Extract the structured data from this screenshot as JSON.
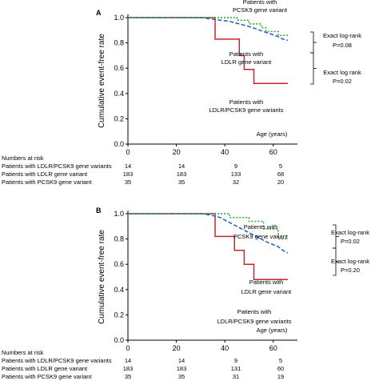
{
  "chart_data": [
    {
      "type": "line",
      "panel": "A",
      "ylabel": "Cumulative event-free rate",
      "xlabel": "Age (years)",
      "xlim": [
        0,
        70
      ],
      "ylim": [
        0.0,
        1.0
      ],
      "xticks": [
        0,
        20,
        40,
        60
      ],
      "yticks": [
        "0.0",
        "0.2",
        "0.4",
        "0.6",
        "0.8",
        "1.0"
      ],
      "series": [
        {
          "name": "Patients with LDLR/PCSK9 gene variants",
          "color": "#d0202a",
          "dash": "solid",
          "points": [
            [
              0,
              1.0
            ],
            [
              36,
              1.0
            ],
            [
              36,
              0.83
            ],
            [
              46,
              0.83
            ],
            [
              46,
              0.7
            ],
            [
              48,
              0.7
            ],
            [
              48,
              0.59
            ],
            [
              52,
              0.59
            ],
            [
              52,
              0.48
            ],
            [
              66,
              0.48
            ]
          ]
        },
        {
          "name": "Patients with LDLR gene variant",
          "color": "#1f5fc4",
          "dash": "dash",
          "points": [
            [
              0,
              1.0
            ],
            [
              30,
              1.0
            ],
            [
              34,
              0.99
            ],
            [
              38,
              0.98
            ],
            [
              42,
              0.97
            ],
            [
              46,
              0.95
            ],
            [
              50,
              0.93
            ],
            [
              53,
              0.91
            ],
            [
              56,
              0.89
            ],
            [
              59,
              0.87
            ],
            [
              62,
              0.85
            ],
            [
              64,
              0.83
            ],
            [
              66,
              0.82
            ]
          ]
        },
        {
          "name": "Patients with PCSK9 gene variant",
          "color": "#2aa42a",
          "dash": "dot",
          "points": [
            [
              0,
              1.0
            ],
            [
              45,
              1.0
            ],
            [
              45,
              0.98
            ],
            [
              50,
              0.98
            ],
            [
              50,
              0.95
            ],
            [
              55,
              0.95
            ],
            [
              55,
              0.92
            ],
            [
              57,
              0.92
            ],
            [
              57,
              0.89
            ],
            [
              62,
              0.89
            ],
            [
              62,
              0.86
            ],
            [
              66,
              0.86
            ]
          ]
        }
      ],
      "annotations": {
        "pcsk9_1": "Patients with",
        "pcsk9_2": "PCSK9 gene variant",
        "ldlr_1": "Patients with",
        "ldlr_2": "LDLR gene variant",
        "both_1": "Patients with",
        "both_2": "LDLR/PCSK9 gene variants",
        "test1_1": "Exact log-rank",
        "test1_2": "P=0.08",
        "test2_1": "Exact log rank",
        "test2_2": "P=0.02"
      },
      "risk_table": {
        "title": "Numbers at risk",
        "rows": [
          {
            "label": "Patients with LDLR/PCSK9 gene variants",
            "values": [
              "14",
              "14",
              "9",
              "5"
            ]
          },
          {
            "label": "Patients with LDLR gene variant",
            "values": [
              "183",
              "183",
              "133",
              "68"
            ]
          },
          {
            "label": "Patients with PCSK9 gene variant",
            "values": [
              "35",
              "35",
              "32",
              "20"
            ]
          }
        ]
      }
    },
    {
      "type": "line",
      "panel": "B",
      "ylabel": "Cumulative event-free rate",
      "xlabel": "Age (years)",
      "xlim": [
        0,
        70
      ],
      "ylim": [
        0.0,
        1.0
      ],
      "xticks": [
        0,
        20,
        40,
        60
      ],
      "yticks": [
        "0.0",
        "0.2",
        "0.4",
        "0.6",
        "0.8",
        "1.0"
      ],
      "series": [
        {
          "name": "Patients with LDLR/PCSK9 gene variants",
          "color": "#d0202a",
          "dash": "solid",
          "points": [
            [
              0,
              1.0
            ],
            [
              36,
              1.0
            ],
            [
              36,
              0.82
            ],
            [
              44,
              0.82
            ],
            [
              44,
              0.71
            ],
            [
              48,
              0.71
            ],
            [
              48,
              0.6
            ],
            [
              52,
              0.6
            ],
            [
              52,
              0.48
            ],
            [
              66,
              0.48
            ]
          ]
        },
        {
          "name": "Patients with LDLR gene variant",
          "color": "#1f5fc4",
          "dash": "dash",
          "points": [
            [
              0,
              1.0
            ],
            [
              30,
              1.0
            ],
            [
              34,
              0.99
            ],
            [
              38,
              0.97
            ],
            [
              42,
              0.93
            ],
            [
              46,
              0.89
            ],
            [
              50,
              0.85
            ],
            [
              54,
              0.81
            ],
            [
              58,
              0.77
            ],
            [
              62,
              0.74
            ],
            [
              64,
              0.71
            ],
            [
              66,
              0.69
            ]
          ]
        },
        {
          "name": "Patients with PCSK9 gene variant",
          "color": "#2aa42a",
          "dash": "dot",
          "points": [
            [
              0,
              1.0
            ],
            [
              42,
              1.0
            ],
            [
              42,
              0.97
            ],
            [
              50,
              0.97
            ],
            [
              50,
              0.94
            ],
            [
              56,
              0.94
            ],
            [
              56,
              0.88
            ],
            [
              62,
              0.88
            ],
            [
              62,
              0.8
            ],
            [
              66,
              0.8
            ]
          ]
        }
      ],
      "annotations": {
        "pcsk9_1": "Patients with",
        "pcsk9_2": "PCSK9 gene variant",
        "ldlr_1": "Patients with",
        "ldlr_2": "LDLR gene variant",
        "both_1": "Patients with",
        "both_2": "LDLR/PCSK9 gene variants",
        "test1_1": "Exact log-rank",
        "test1_2": "P=0.02",
        "test2_1": "Exact log-rank",
        "test2_2": "P=0.20"
      },
      "risk_table": {
        "title": "Numbers at risk",
        "rows": [
          {
            "label": "Patients with LDLR/PCSK9 gene variants",
            "values": [
              "14",
              "14",
              "9",
              "5"
            ]
          },
          {
            "label": "Patients with LDLR gene variant",
            "values": [
              "183",
              "183",
              "131",
              "60"
            ]
          },
          {
            "label": "Patients with PCSK9 gene variant",
            "values": [
              "35",
              "35",
              "31",
              "19"
            ]
          }
        ]
      }
    }
  ]
}
